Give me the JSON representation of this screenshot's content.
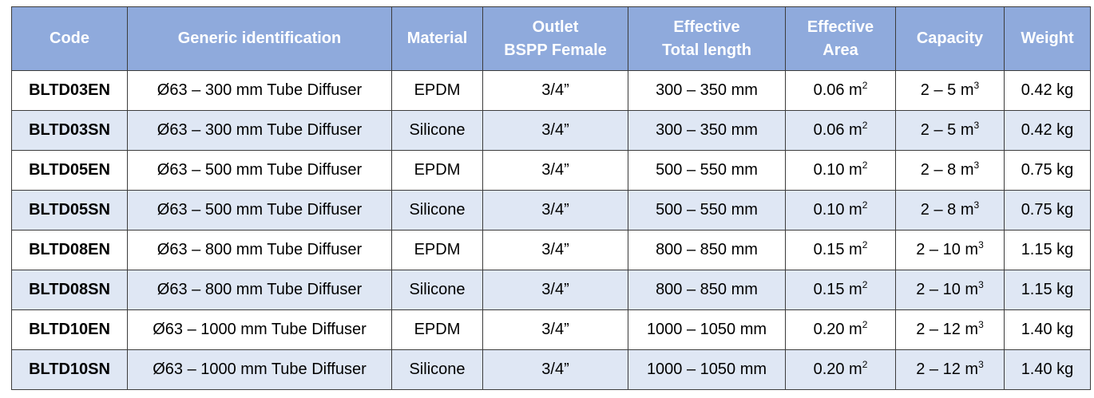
{
  "table": {
    "headers": [
      {
        "key": "code",
        "lines": [
          "Code"
        ]
      },
      {
        "key": "generic",
        "lines": [
          "Generic identification"
        ]
      },
      {
        "key": "material",
        "lines": [
          "Material"
        ]
      },
      {
        "key": "outlet",
        "lines": [
          "Outlet",
          "BSPP Female"
        ]
      },
      {
        "key": "length",
        "lines": [
          "Effective",
          "Total length"
        ]
      },
      {
        "key": "area",
        "lines": [
          "Effective",
          "Area"
        ]
      },
      {
        "key": "capacity",
        "lines": [
          "Capacity"
        ]
      },
      {
        "key": "weight",
        "lines": [
          "Weight"
        ]
      }
    ],
    "rows": [
      {
        "code": "BLTD03EN",
        "generic": "Ø63 – 300 mm Tube Diffuser",
        "material": "EPDM",
        "outlet": "3/4”",
        "length": "300 – 350 mm",
        "area": "0.06 m",
        "area_sup": "2",
        "capacity": "2 – 5 m",
        "capacity_sup": "3",
        "weight": "0.42 kg"
      },
      {
        "code": "BLTD03SN",
        "generic": "Ø63 – 300 mm Tube Diffuser",
        "material": "Silicone",
        "outlet": "3/4”",
        "length": "300 – 350 mm",
        "area": "0.06 m",
        "area_sup": "2",
        "capacity": "2 – 5 m",
        "capacity_sup": "3",
        "weight": "0.42 kg"
      },
      {
        "code": "BLTD05EN",
        "generic": "Ø63 – 500 mm Tube Diffuser",
        "material": "EPDM",
        "outlet": "3/4”",
        "length": "500 – 550 mm",
        "area": "0.10 m",
        "area_sup": "2",
        "capacity": "2 – 8 m",
        "capacity_sup": "3",
        "weight": "0.75 kg"
      },
      {
        "code": "BLTD05SN",
        "generic": "Ø63 – 500 mm Tube Diffuser",
        "material": "Silicone",
        "outlet": "3/4”",
        "length": "500 – 550 mm",
        "area": "0.10 m",
        "area_sup": "2",
        "capacity": "2 – 8 m",
        "capacity_sup": "3",
        "weight": "0.75 kg"
      },
      {
        "code": "BLTD08EN",
        "generic": "Ø63 – 800 mm Tube Diffuser",
        "material": "EPDM",
        "outlet": "3/4”",
        "length": "800 – 850 mm",
        "area": "0.15 m",
        "area_sup": "2",
        "capacity": "2 – 10 m",
        "capacity_sup": "3",
        "weight": "1.15 kg"
      },
      {
        "code": "BLTD08SN",
        "generic": "Ø63 – 800 mm Tube Diffuser",
        "material": "Silicone",
        "outlet": "3/4”",
        "length": "800 – 850 mm",
        "area": "0.15 m",
        "area_sup": "2",
        "capacity": "2 – 10 m",
        "capacity_sup": "3",
        "weight": "1.15 kg"
      },
      {
        "code": "BLTD10EN",
        "generic": "Ø63 – 1000 mm Tube Diffuser",
        "material": "EPDM",
        "outlet": "3/4”",
        "length": "1000 – 1050 mm",
        "area": "0.20 m",
        "area_sup": "2",
        "capacity": "2 – 12 m",
        "capacity_sup": "3",
        "weight": "1.40 kg"
      },
      {
        "code": "BLTD10SN",
        "generic": "Ø63 – 1000 mm Tube Diffuser",
        "material": "Silicone",
        "outlet": "3/4”",
        "length": "1000 – 1050 mm",
        "area": "0.20 m",
        "area_sup": "2",
        "capacity": "2 – 12 m",
        "capacity_sup": "3",
        "weight": "1.40 kg"
      }
    ]
  },
  "colors": {
    "header_bg": "#8faadc",
    "header_text": "#ffffff",
    "row_alt_bg": "#dfe7f4",
    "border": "#3c3c3c"
  }
}
